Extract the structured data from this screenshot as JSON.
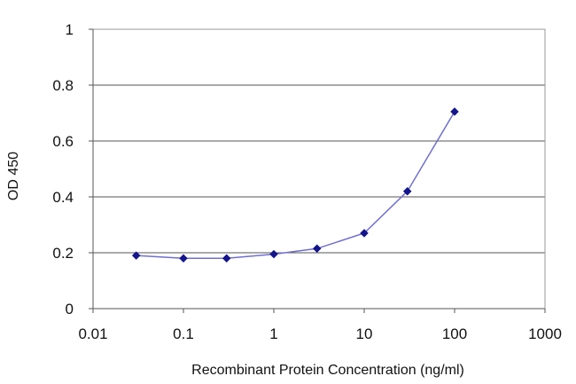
{
  "chart_data": {
    "type": "line",
    "xlabel": "Recombinant Protein Concentration (ng/ml)",
    "ylabel": "OD 450",
    "x_scale": "log",
    "xlim": [
      0.01,
      1000
    ],
    "ylim": [
      0,
      1
    ],
    "x_ticks": [
      0.01,
      0.1,
      1,
      10,
      100,
      1000
    ],
    "x_tick_labels": [
      "0.01",
      "0.1",
      "1",
      "10",
      "100",
      "1000"
    ],
    "y_ticks": [
      0,
      0.2,
      0.4,
      0.6,
      0.8,
      1
    ],
    "y_tick_labels": [
      "0",
      "0.2",
      "0.4",
      "0.6",
      "0.8",
      "1"
    ],
    "grid": "horizontal",
    "legend": "none",
    "series": [
      {
        "x": [
          0.03,
          0.1,
          0.3,
          1,
          3,
          10,
          30,
          100
        ],
        "y": [
          0.19,
          0.18,
          0.18,
          0.195,
          0.215,
          0.27,
          0.42,
          0.705
        ],
        "color": "#6f6fd0",
        "marker_color": "#14148c"
      }
    ]
  }
}
